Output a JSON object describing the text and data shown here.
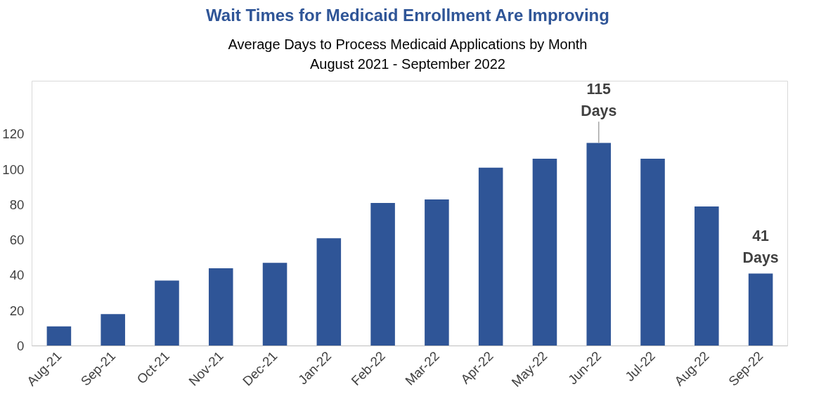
{
  "chart_data": {
    "type": "bar",
    "title": "Wait Times for Medicaid Enrollment Are Improving",
    "subtitle": "Average Days to Process Medicaid Applications by Month\nAugust 2021 - September 2022",
    "categories": [
      "Aug-21",
      "Sep-21",
      "Oct-21",
      "Nov-21",
      "Dec-21",
      "Jan-22",
      "Feb-22",
      "Mar-22",
      "Apr-22",
      "May-22",
      "Jun-22",
      "Jul-22",
      "Aug-22",
      "Sep-22"
    ],
    "values": [
      11,
      18,
      37,
      44,
      47,
      61,
      81,
      83,
      101,
      106,
      115,
      106,
      79,
      41
    ],
    "color": "#2f5597",
    "ylim": [
      0,
      150
    ],
    "yticks": [
      0,
      20,
      40,
      60,
      80,
      100,
      120
    ],
    "grid": false,
    "annotations": [
      {
        "text": "115\nDays",
        "x": "Jun-22",
        "y": 115
      },
      {
        "text": "41\nDays",
        "x": "Sep-22",
        "y": 41
      }
    ]
  }
}
